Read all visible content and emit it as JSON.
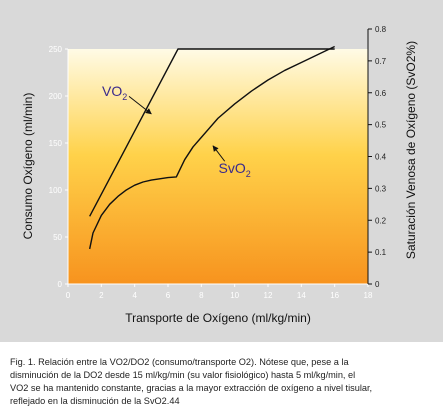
{
  "chart_data": {
    "type": "line",
    "xlabel": "Transporte de Oxígeno (ml/kg/min)",
    "ylabel_left": "Consumo Oxígeno (ml/min)",
    "ylabel_right": "Saturación Venosa de Oxígeno (SvO2%)",
    "xlim": [
      0,
      18
    ],
    "ylim_left": [
      0,
      250
    ],
    "ylim_right": [
      0,
      0.8
    ],
    "x_ticks": [
      "0",
      "2",
      "4",
      "6",
      "8",
      "10",
      "12",
      "14",
      "16",
      "18"
    ],
    "y_left_ticks": [
      "0",
      "50",
      "100",
      "150",
      "200",
      "250"
    ],
    "y_right_ticks": [
      "0",
      "0.1",
      "0.2",
      "0.3",
      "0.4",
      "0.5",
      "0.6",
      "0.7",
      "0.8"
    ],
    "background_gradient": {
      "top": "#fffbe6",
      "mid": "#ffd24a",
      "bottom": "#f7931e"
    },
    "series": [
      {
        "name": "VO2",
        "axis": "left",
        "color": "#111111",
        "x": [
          1.3,
          6.6,
          16
        ],
        "y": [
          72,
          250,
          250
        ]
      },
      {
        "name": "SvO2",
        "axis": "right",
        "color": "#111111",
        "x": [
          1.3,
          1.5,
          2.0,
          2.5,
          3.0,
          3.5,
          4.0,
          4.5,
          5.0,
          5.5,
          6.0,
          6.5,
          7.0,
          7.5,
          8.0,
          9.0,
          10.0,
          11.0,
          12.0,
          13.0,
          14.0,
          15.0,
          16.0
        ],
        "y": [
          0.11,
          0.16,
          0.215,
          0.25,
          0.275,
          0.295,
          0.31,
          0.32,
          0.326,
          0.33,
          0.334,
          0.336,
          0.39,
          0.43,
          0.46,
          0.52,
          0.565,
          0.605,
          0.64,
          0.67,
          0.695,
          0.72,
          0.745
        ]
      }
    ],
    "annotations": [
      {
        "series": "VO2",
        "label_main": "VO",
        "label_sub": "2",
        "color": "#3a2a8c",
        "label_x": 2.8,
        "label_y_left": 200,
        "arrow_to_x": 5.0,
        "arrow_to_y_left": 181
      },
      {
        "series": "SvO2",
        "label_main": "SvO",
        "label_sub": "2",
        "color": "#3a2a8c",
        "label_x": 10.0,
        "label_y_left": 118,
        "arrow_to_x": 8.7,
        "arrow_to_y_left": 147
      }
    ]
  },
  "caption": {
    "lines": [
      "Fig. 1. Relación entre la VO2/DO2 (consumo/transporte O2). Nótese que, pese a la",
      "disminución de la DO2 desde 15 ml/kg/min (su valor fisiológico) hasta 5 ml/kg/min, el",
      "VO2 se ha mantenido constante, gracias a la mayor extracción de oxígeno a nivel tisular,",
      "reflejado en la disminución de la SvO2.44"
    ]
  }
}
